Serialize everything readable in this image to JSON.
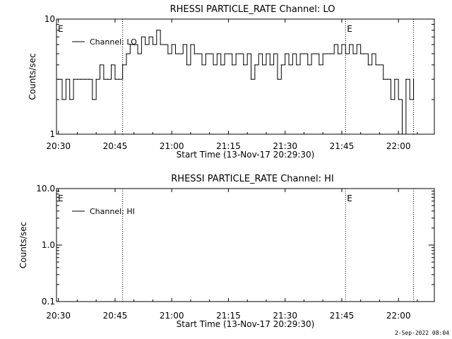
{
  "footer": {
    "timestamp": "2-Sep-2022 08:04"
  },
  "chart_data": [
    {
      "type": "line",
      "title": "RHESSI PARTICLE_RATE Channel: LO",
      "xlabel": "Start Time (13-Nov-17 20:29:30)",
      "ylabel": "Counts/sec",
      "y_scale": "log",
      "ylim": [
        1,
        10
      ],
      "y_ticks": [
        1,
        10
      ],
      "y_tick_labels": [
        "1",
        "10"
      ],
      "xlim": [
        "20:29:30",
        "22:09:30"
      ],
      "x_ticks": [
        "20:30",
        "20:45",
        "21:00",
        "21:15",
        "21:30",
        "21:45",
        "22:00"
      ],
      "grid": false,
      "legend": {
        "position": "top-left",
        "entries": [
          "Channel: LO"
        ]
      },
      "event_markers": [
        {
          "time": "20:47",
          "label": ""
        },
        {
          "time": "21:46",
          "label": "E"
        },
        {
          "time": "22:04",
          "label": ""
        }
      ],
      "left_edge_label": "E",
      "series": [
        {
          "name": "Channel: LO",
          "x": [
            "20:30",
            "20:31",
            "20:32",
            "20:33",
            "20:34",
            "20:35",
            "20:36",
            "20:37",
            "20:38",
            "20:39",
            "20:40",
            "20:41",
            "20:42",
            "20:43",
            "20:44",
            "20:45",
            "20:46",
            "20:47",
            "20:48",
            "20:49",
            "20:50",
            "20:51",
            "20:52",
            "20:53",
            "20:54",
            "20:55",
            "20:56",
            "20:57",
            "20:58",
            "20:59",
            "21:00",
            "21:01",
            "21:02",
            "21:03",
            "21:04",
            "21:05",
            "21:06",
            "21:07",
            "21:08",
            "21:09",
            "21:10",
            "21:11",
            "21:12",
            "21:13",
            "21:14",
            "21:15",
            "21:16",
            "21:17",
            "21:18",
            "21:19",
            "21:20",
            "21:21",
            "21:22",
            "21:23",
            "21:24",
            "21:25",
            "21:26",
            "21:27",
            "21:28",
            "21:29",
            "21:30",
            "21:31",
            "21:32",
            "21:33",
            "21:34",
            "21:35",
            "21:36",
            "21:37",
            "21:38",
            "21:39",
            "21:40",
            "21:41",
            "21:42",
            "21:43",
            "21:44",
            "21:45",
            "21:46",
            "21:47",
            "21:48",
            "21:49",
            "21:50",
            "21:51",
            "21:52",
            "21:53",
            "21:54",
            "21:55",
            "21:56",
            "21:57",
            "21:58",
            "21:59",
            "22:00",
            "22:01",
            "22:02",
            "22:03",
            "22:04"
          ],
          "y": [
            3,
            2,
            3,
            2,
            3,
            3,
            3,
            3,
            3,
            2,
            3,
            4,
            3,
            3,
            4,
            3,
            3,
            4,
            5,
            6,
            6,
            5,
            7,
            6,
            7,
            6,
            8,
            6,
            6,
            5,
            6,
            5,
            5,
            6,
            4,
            6,
            5,
            5,
            4,
            5,
            5,
            4,
            5,
            4,
            5,
            5,
            4,
            5,
            5,
            4,
            5,
            3,
            4,
            5,
            4,
            5,
            4,
            5,
            3,
            4,
            5,
            4,
            5,
            4,
            5,
            5,
            4,
            5,
            5,
            4,
            5,
            5,
            5,
            6,
            5,
            6,
            5,
            6,
            5,
            6,
            5,
            5,
            4,
            5,
            4,
            4,
            3,
            3,
            2,
            3,
            2,
            1,
            3,
            2,
            3
          ]
        }
      ]
    },
    {
      "type": "line",
      "title": "RHESSI PARTICLE_RATE Channel: HI",
      "xlabel": "Start Time (13-Nov-17 20:29:30)",
      "ylabel": "Counts/sec",
      "y_scale": "log",
      "ylim": [
        0.1,
        10
      ],
      "y_ticks": [
        0.1,
        1.0,
        10.0
      ],
      "y_tick_labels": [
        "0.1",
        "1.0",
        "10.0"
      ],
      "xlim": [
        "20:29:30",
        "22:09:30"
      ],
      "x_ticks": [
        "20:30",
        "20:45",
        "21:00",
        "21:15",
        "21:30",
        "21:45",
        "22:00"
      ],
      "grid": false,
      "legend": {
        "position": "top-left",
        "entries": [
          "Channel: HI"
        ]
      },
      "event_markers": [
        {
          "time": "20:47",
          "label": ""
        },
        {
          "time": "21:46",
          "label": "E"
        },
        {
          "time": "22:04",
          "label": ""
        }
      ],
      "left_edge_label": "E",
      "series": [
        {
          "name": "Channel: HI",
          "x": [],
          "y": []
        }
      ]
    }
  ]
}
